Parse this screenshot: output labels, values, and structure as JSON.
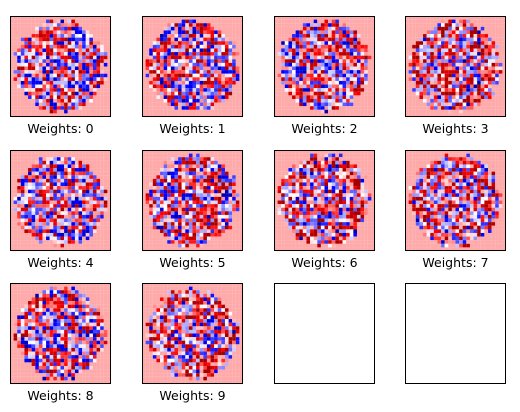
{
  "chart_data": {
    "type": "heatmap",
    "grid": {
      "rows": 3,
      "cols": 4
    },
    "resolution": [
      28,
      28
    ],
    "colormap": "seismic",
    "value_range": [
      -1,
      1
    ],
    "background_value": -0.25,
    "axes_ticks": false,
    "panels": [
      {
        "label": "Weights: 0",
        "seed": 11,
        "bias": 0.05,
        "edge_boost": 0.0
      },
      {
        "label": "Weights: 1",
        "seed": 23,
        "bias": 0.1,
        "edge_boost": 0.0
      },
      {
        "label": "Weights: 2",
        "seed": 37,
        "bias": 0.05,
        "edge_boost": 0.2
      },
      {
        "label": "Weights: 3",
        "seed": 41,
        "bias": 0.15,
        "edge_boost": 0.4
      },
      {
        "label": "Weights: 4",
        "seed": 53,
        "bias": 0.05,
        "edge_boost": 0.0
      },
      {
        "label": "Weights: 5",
        "seed": 67,
        "bias": 0.1,
        "edge_boost": 0.1
      },
      {
        "label": "Weights: 6",
        "seed": 79,
        "bias": 0.1,
        "edge_boost": 0.5
      },
      {
        "label": "Weights: 7",
        "seed": 83,
        "bias": 0.15,
        "edge_boost": 0.2
      },
      {
        "label": "Weights: 8",
        "seed": 97,
        "bias": 0.05,
        "edge_boost": 0.1
      },
      {
        "label": "Weights: 9",
        "seed": 101,
        "bias": 0.1,
        "edge_boost": 0.4
      },
      {
        "label": "",
        "empty": true
      },
      {
        "label": "",
        "empty": true
      }
    ]
  }
}
